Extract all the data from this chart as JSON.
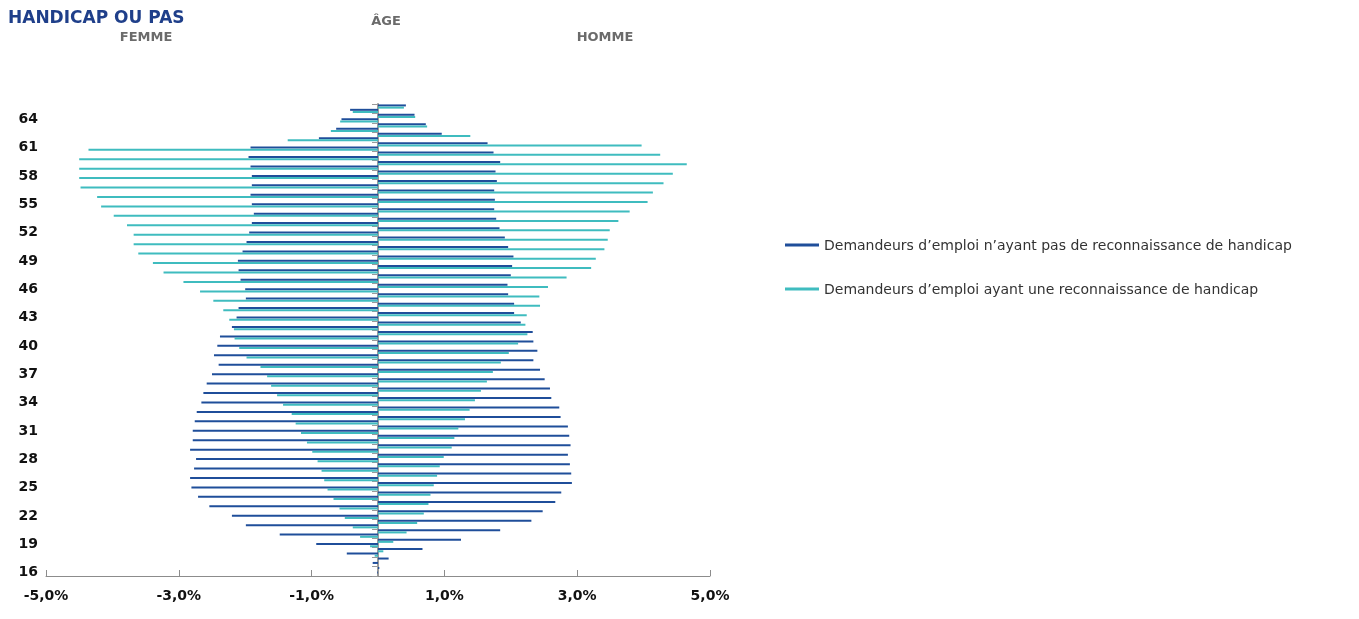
{
  "chart_data": {
    "type": "bar",
    "orientation": "horizontal",
    "title": "HANDICAP OU PAS",
    "annotations": [
      "FEMME",
      "ÂGE",
      "HOMME"
    ],
    "categories": [
      null,
      "64",
      null,
      null,
      "61",
      null,
      null,
      "58",
      null,
      null,
      "55",
      null,
      null,
      "52",
      null,
      null,
      "49",
      null,
      null,
      "46",
      null,
      null,
      "43",
      null,
      null,
      "40",
      null,
      null,
      "37",
      null,
      null,
      "34",
      null,
      null,
      "31",
      null,
      null,
      "28",
      null,
      null,
      "25",
      null,
      null,
      "22",
      null,
      null,
      "19",
      null,
      null,
      "16"
    ],
    "series": [
      {
        "name": "Demandeurs d’emploi n’ayant pas de reconnaissance de handicap",
        "color": "#1f4e9a",
        "values": [
          0.42,
          0.55,
          0.72,
          0.96,
          1.65,
          1.74,
          1.84,
          1.77,
          1.79,
          1.75,
          1.76,
          1.75,
          1.78,
          1.83,
          1.91,
          1.96,
          2.04,
          2.02,
          2.0,
          1.95,
          1.96,
          2.05,
          2.05,
          2.15,
          2.33,
          2.34,
          2.4,
          2.34,
          2.44,
          2.51,
          2.59,
          2.61,
          2.73,
          2.75,
          2.86,
          2.88,
          2.9,
          2.86,
          2.89,
          2.91,
          2.92,
          2.76,
          2.67,
          2.48,
          2.31,
          1.84,
          1.25,
          0.67,
          0.16,
          0.02
        ]
      },
      {
        "name": "Demandeurs d’emploi ayant une reconnaissance de handicap",
        "color": "#3fbcbf",
        "values": [
          0.39,
          0.56,
          0.74,
          1.39,
          3.97,
          4.25,
          4.65,
          4.44,
          4.3,
          4.14,
          4.06,
          3.79,
          3.62,
          3.49,
          3.46,
          3.41,
          3.28,
          3.21,
          2.84,
          2.56,
          2.43,
          2.44,
          2.24,
          2.22,
          2.25,
          2.11,
          1.97,
          1.85,
          1.73,
          1.64,
          1.55,
          1.46,
          1.38,
          1.31,
          1.21,
          1.15,
          1.11,
          0.99,
          0.93,
          0.89,
          0.84,
          0.79,
          0.76,
          0.69,
          0.59,
          0.43,
          0.23,
          0.08,
          0,
          0
        ]
      },
      {
        "color": "#1f4e9a",
        "values": [
          -0.42,
          -0.55,
          -0.63,
          -0.89,
          -1.92,
          -1.95,
          -1.92,
          -1.9,
          -1.9,
          -1.92,
          -1.9,
          -1.87,
          -1.9,
          -1.94,
          -1.98,
          -2.04,
          -2.11,
          -2.1,
          -2.07,
          -2.0,
          -1.99,
          -2.1,
          -2.13,
          -2.2,
          -2.38,
          -2.42,
          -2.47,
          -2.4,
          -2.5,
          -2.58,
          -2.63,
          -2.66,
          -2.73,
          -2.76,
          -2.79,
          -2.79,
          -2.83,
          -2.74,
          -2.77,
          -2.83,
          -2.81,
          -2.71,
          -2.54,
          -2.2,
          -1.99,
          -1.48,
          -0.93,
          -0.47,
          -0.08,
          -0.01
        ]
      },
      {
        "color": "#3fbcbf",
        "values": [
          -0.38,
          -0.57,
          -0.71,
          -1.36,
          -4.36,
          -4.5,
          -4.5,
          -4.5,
          -4.48,
          -4.23,
          -4.17,
          -3.98,
          -3.78,
          -3.68,
          -3.68,
          -3.61,
          -3.39,
          -3.23,
          -2.93,
          -2.68,
          -2.48,
          -2.33,
          -2.24,
          -2.17,
          -2.16,
          -2.09,
          -1.98,
          -1.77,
          -1.67,
          -1.61,
          -1.52,
          -1.43,
          -1.3,
          -1.24,
          -1.16,
          -1.07,
          -0.99,
          -0.91,
          -0.85,
          -0.81,
          -0.76,
          -0.67,
          -0.58,
          -0.5,
          -0.38,
          -0.27,
          -0.12,
          -0.05,
          0,
          0
        ]
      }
    ],
    "xlim": [
      -5,
      5
    ],
    "xticks": [
      {
        "value": -5,
        "label": "-5,0%"
      },
      {
        "value": -3,
        "label": "-3,0%"
      },
      {
        "value": -1,
        "label": "-1,0%"
      },
      {
        "value": 1,
        "label": "1,0%"
      },
      {
        "value": 3,
        "label": "3,0%"
      },
      {
        "value": 5,
        "label": "5,0%"
      }
    ],
    "grid": false,
    "legend": "right"
  }
}
